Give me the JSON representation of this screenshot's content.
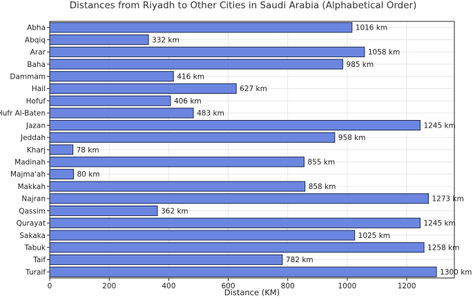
{
  "chart_data": {
    "type": "bar",
    "orientation": "horizontal",
    "title": "Distances from Riyadh to Other Cities in Saudi Arabia (Alphabetical Order)",
    "xlabel": "Distance (KM)",
    "ylabel": "",
    "xlim": [
      0,
      1360
    ],
    "xticks": [
      0,
      200,
      400,
      600,
      800,
      1000,
      1200
    ],
    "grid": true,
    "bar_color": "#6b86e0",
    "edge_color": "#1f2a4d",
    "value_suffix": " km",
    "categories": [
      "Abha",
      "Abqiq",
      "Arar",
      "Baha",
      "Dammam",
      "Hail",
      "Hofuf",
      "Hufr Al-Baten",
      "Jazan",
      "Jeddah",
      "Kharj",
      "Madinah",
      "Majma'ah",
      "Makkah",
      "Najran",
      "Qassim",
      "Qurayat",
      "Sakaka",
      "Tabuk",
      "Taif",
      "Turaif"
    ],
    "values": [
      1016,
      332,
      1058,
      985,
      416,
      627,
      406,
      483,
      1245,
      958,
      78,
      855,
      80,
      858,
      1273,
      362,
      1245,
      1025,
      1258,
      782,
      1300
    ]
  }
}
